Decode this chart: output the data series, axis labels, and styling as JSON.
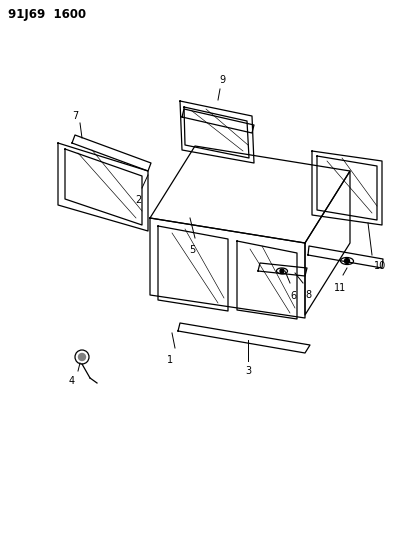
{
  "title": "91J69  1600",
  "background_color": "#ffffff",
  "line_color": "#000000",
  "figsize": [
    3.98,
    5.33
  ],
  "dpi": 100
}
